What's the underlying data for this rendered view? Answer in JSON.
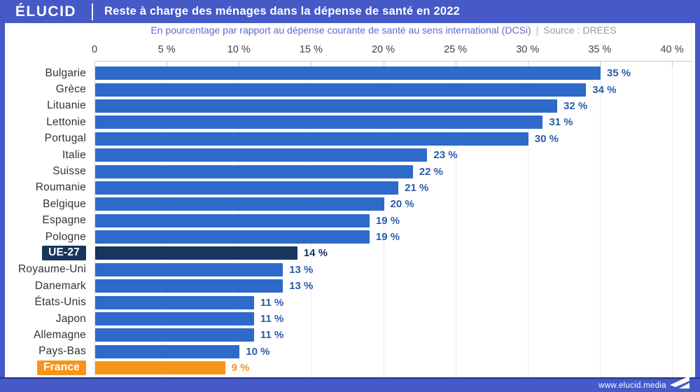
{
  "brand": {
    "logo": "ÉLUCID",
    "footer_url": "www.elucid.media"
  },
  "header": {
    "title": "Reste à charge des ménages dans la dépense de santé en 2022"
  },
  "subtitle": {
    "text": "En pourcentage par rapport au dépense courante de santé au sens international (DCSi)",
    "separator": "|",
    "source": "Source : DREES"
  },
  "colors": {
    "brand_blue": "#4559C7",
    "bar_blue": "#2E6AC9",
    "eu_navy": "#16355F",
    "france_orange": "#F7941E",
    "value_blue": "#2B5CA9",
    "footer_line": "#27348B"
  },
  "chart_data": {
    "type": "bar",
    "orientation": "horizontal",
    "title": "Reste à charge des ménages dans la dépense de santé en 2022",
    "xlabel": "",
    "ylabel": "",
    "xlim": [
      0,
      40
    ],
    "grid": true,
    "axis_position": "top",
    "x_tick_step": 5,
    "x_tick_labels": [
      "0",
      "5 %",
      "10 %",
      "15 %",
      "20 %",
      "25 %",
      "30 %",
      "35 %",
      "40 %"
    ],
    "rows": [
      {
        "label": "Bulgarie",
        "value": 35,
        "display": "35 %",
        "style": "default"
      },
      {
        "label": "Grèce",
        "value": 34,
        "display": "34 %",
        "style": "default"
      },
      {
        "label": "Lituanie",
        "value": 32,
        "display": "32 %",
        "style": "default"
      },
      {
        "label": "Lettonie",
        "value": 31,
        "display": "31 %",
        "style": "default"
      },
      {
        "label": "Portugal",
        "value": 30,
        "display": "30 %",
        "style": "default"
      },
      {
        "label": "Italie",
        "value": 23,
        "display": "23 %",
        "style": "default"
      },
      {
        "label": "Suisse",
        "value": 22,
        "display": "22 %",
        "style": "default"
      },
      {
        "label": "Roumanie",
        "value": 21,
        "display": "21 %",
        "style": "default"
      },
      {
        "label": "Belgique",
        "value": 20,
        "display": "20 %",
        "style": "default"
      },
      {
        "label": "Espagne",
        "value": 19,
        "display": "19 %",
        "style": "default"
      },
      {
        "label": "Pologne",
        "value": 19,
        "display": "19 %",
        "style": "default"
      },
      {
        "label": "UE-27",
        "value": 14,
        "display": "14 %",
        "style": "eu"
      },
      {
        "label": "Royaume-Uni",
        "value": 13,
        "display": "13 %",
        "style": "default"
      },
      {
        "label": "Danemark",
        "value": 13,
        "display": "13 %",
        "style": "default"
      },
      {
        "label": "États-Unis",
        "value": 11,
        "display": "11 %",
        "style": "default"
      },
      {
        "label": "Japon",
        "value": 11,
        "display": "11 %",
        "style": "default"
      },
      {
        "label": "Allemagne",
        "value": 11,
        "display": "11 %",
        "style": "default"
      },
      {
        "label": "Pays-Bas",
        "value": 10,
        "display": "10 %",
        "style": "default"
      },
      {
        "label": "France",
        "value": 9,
        "display": "9 %",
        "style": "france"
      }
    ]
  }
}
